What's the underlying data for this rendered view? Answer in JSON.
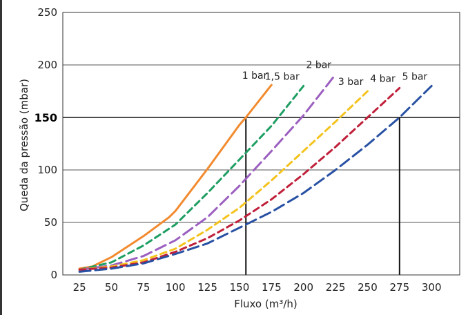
{
  "chart_data": {
    "type": "line",
    "xlabel": "Fluxo (m³/h)",
    "ylabel": "Queda da pressão (mbar)",
    "xlim": [
      12,
      322
    ],
    "ylim": [
      0,
      250
    ],
    "xticks": [
      "25",
      "50",
      "75",
      "100",
      "125",
      "150",
      "175",
      "200",
      "225",
      "250",
      "275",
      "300"
    ],
    "yticks": [
      "0",
      "50",
      "100",
      "200",
      "250"
    ],
    "highlight_ytick": "150",
    "grid": "horizontal",
    "reference_lines": {
      "y": 150,
      "x_values": [
        155,
        275
      ]
    },
    "series": [
      {
        "name": "1 bar",
        "color": "#f28a2e",
        "dash": "solid",
        "x": [
          25,
          35,
          50,
          75,
          95,
          100,
          125,
          150,
          155,
          175
        ],
        "y": [
          6,
          8,
          17,
          37,
          55,
          61,
          101,
          143,
          150,
          181
        ]
      },
      {
        "name": "1,5 bar",
        "color": "#1e9e62",
        "dash": "dash",
        "x": [
          25,
          50,
          75,
          100,
          125,
          150,
          175,
          200
        ],
        "y": [
          5,
          12,
          28,
          48,
          78,
          110,
          142,
          180
        ]
      },
      {
        "name": "2 bar",
        "color": "#9b5fc0",
        "dash": "longdash",
        "x": [
          25,
          50,
          75,
          100,
          125,
          150,
          175,
          200,
          225
        ],
        "y": [
          5,
          9,
          18,
          33,
          55,
          85,
          118,
          152,
          191
        ]
      },
      {
        "name": "3 bar",
        "color": "#f4c31e",
        "dash": "dash",
        "x": [
          25,
          50,
          75,
          100,
          125,
          150,
          175,
          200,
          225,
          250
        ],
        "y": [
          5,
          8,
          14,
          25,
          43,
          64,
          90,
          118,
          146,
          175
        ]
      },
      {
        "name": "4 bar",
        "color": "#c0203a",
        "dash": "dash",
        "x": [
          25,
          50,
          75,
          100,
          125,
          150,
          175,
          200,
          225,
          250,
          275
        ],
        "y": [
          5,
          7,
          12,
          22,
          35,
          52,
          72,
          96,
          122,
          150,
          178
        ]
      },
      {
        "name": "5 bar",
        "color": "#2851a3",
        "dash": "longdash",
        "x": [
          25,
          50,
          75,
          100,
          125,
          150,
          175,
          200,
          225,
          250,
          275,
          300
        ],
        "y": [
          3,
          6,
          11,
          20,
          30,
          45,
          60,
          78,
          100,
          124,
          150,
          180
        ]
      }
    ]
  }
}
